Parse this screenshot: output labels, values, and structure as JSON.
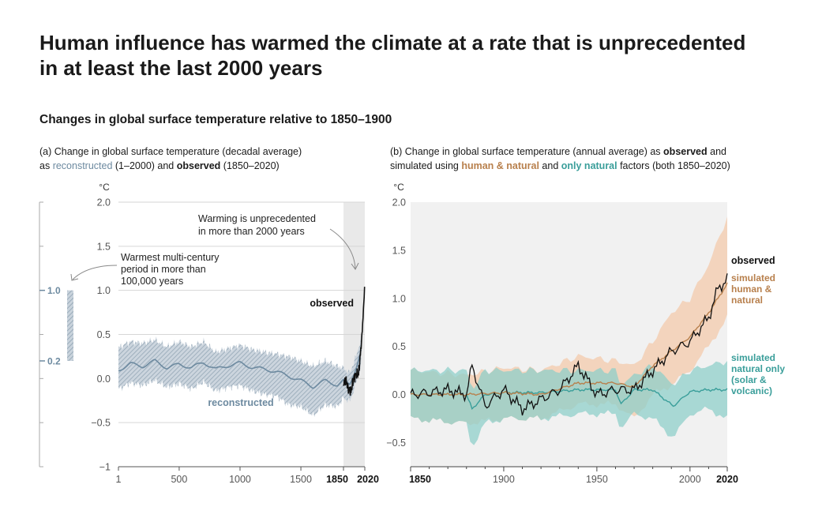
{
  "title_line1": "Human influence has warmed the climate at a rate that is unprecedented",
  "title_line2": "in at least the last 2000 years",
  "subtitle": "Changes in global surface temperature relative to 1850–1900",
  "panel_a": {
    "caption_line1": "(a) Change in global surface temperature (decadal average)",
    "caption_pre": "as ",
    "caption_recon": "reconstructed",
    "caption_mid": " (1–2000) and ",
    "caption_obs": "observed",
    "caption_post": " (1850–2020)",
    "unit": "°C",
    "y_ticks": [
      "2.0",
      "1.5",
      "1.0",
      "0.5",
      "0.0",
      "−0.5",
      "−1"
    ],
    "x_ticks": [
      "1",
      "500",
      "1000",
      "1500"
    ],
    "x_ticks_bold": [
      "1850",
      "2020"
    ],
    "annot_unprecedented_1": "Warming is unprecedented",
    "annot_unprecedented_2": "in more than 2000 years",
    "annot_warmest_1": "Warmest multi-century",
    "annot_warmest_2": "period in more than",
    "annot_warmest_3": "100,000 years",
    "label_observed": "observed",
    "label_reconstructed": "reconstructed",
    "side_bar_top": "1.0",
    "side_bar_bottom": "0.2"
  },
  "panel_b": {
    "caption_pre": "(b) Change in global surface temperature (annual average) as ",
    "caption_obs": "observed",
    "caption_post1": " and",
    "caption_l2_pre": "simulated using ",
    "caption_hum": "human & natural",
    "caption_and": " and ",
    "caption_nat": "only natural",
    "caption_l2_post": " factors (both 1850–2020)",
    "unit": "°C",
    "y_ticks": [
      "2.0",
      "1.5",
      "1.0",
      "0.5",
      "0.0",
      "−0.5"
    ],
    "x_ticks": [
      "1900",
      "1950",
      "2000"
    ],
    "x_ticks_bold": [
      "1850",
      "2020"
    ],
    "label_observed": "observed",
    "label_hum_1": "simulated",
    "label_hum_2": "human &",
    "label_hum_3": "natural",
    "label_nat_1": "simulated",
    "label_nat_2": "natural only",
    "label_nat_3": "(solar &",
    "label_nat_4": "volcanic)"
  },
  "colors": {
    "reconstructed": "#6d8aa0",
    "reconstructed_band": "#aebdc9",
    "observed": "#111111",
    "human_natural": "#b8804d",
    "human_natural_band": "#f3cfb4",
    "natural": "#3a9e9a",
    "natural_band": "#8fcfca",
    "plot_bg": "#f1f1f1"
  },
  "chart_data": [
    {
      "type": "line",
      "title": "(a) Change in global surface temperature (decadal average) as reconstructed (1–2000) and observed (1850–2020)",
      "ylabel": "°C",
      "xlim": [
        1,
        2020
      ],
      "ylim": [
        -1,
        2
      ],
      "grid": true,
      "series": [
        {
          "name": "reconstructed",
          "x": [
            1,
            100,
            200,
            300,
            400,
            500,
            600,
            700,
            800,
            900,
            1000,
            1100,
            1200,
            1300,
            1400,
            1500,
            1600,
            1700,
            1800,
            1850,
            1900,
            1950,
            2000
          ],
          "values": [
            0.08,
            0.15,
            0.12,
            0.18,
            0.1,
            0.14,
            0.1,
            0.16,
            0.08,
            0.12,
            0.15,
            0.1,
            0.08,
            0.05,
            0.0,
            -0.05,
            -0.12,
            -0.05,
            -0.1,
            -0.05,
            -0.1,
            0.1,
            0.35
          ],
          "band_low": [
            -0.12,
            -0.05,
            -0.08,
            -0.02,
            -0.1,
            -0.06,
            -0.12,
            -0.04,
            -0.14,
            -0.1,
            -0.08,
            -0.14,
            -0.18,
            -0.2,
            -0.3,
            -0.32,
            -0.42,
            -0.3,
            -0.32,
            -0.22,
            -0.26,
            -0.05,
            0.2
          ],
          "band_high": [
            0.35,
            0.42,
            0.4,
            0.44,
            0.36,
            0.42,
            0.36,
            0.42,
            0.3,
            0.34,
            0.38,
            0.33,
            0.3,
            0.28,
            0.25,
            0.2,
            0.14,
            0.2,
            0.14,
            0.12,
            0.06,
            0.25,
            0.5
          ]
        },
        {
          "name": "observed",
          "x": [
            1850,
            1870,
            1890,
            1910,
            1930,
            1950,
            1970,
            1990,
            2000,
            2010,
            2020
          ],
          "values": [
            -0.05,
            -0.02,
            -0.12,
            -0.15,
            0.0,
            0.05,
            0.05,
            0.35,
            0.55,
            0.8,
            1.08
          ]
        }
      ],
      "annotations": [
        "Warming is unprecedented in more than 2000 years",
        "Warmest multi-century period in more than 100,000 years"
      ],
      "side_bar_range": [
        0.2,
        1.0
      ]
    },
    {
      "type": "line",
      "title": "(b) Change in global surface temperature (annual average) as observed and simulated using human & natural and only natural factors (both 1850–2020)",
      "ylabel": "°C",
      "xlim": [
        1850,
        2020
      ],
      "ylim": [
        -0.75,
        2.0
      ],
      "grid": false,
      "series": [
        {
          "name": "observed",
          "x": [
            1850,
            1860,
            1870,
            1880,
            1883,
            1890,
            1900,
            1910,
            1920,
            1930,
            1940,
            1945,
            1950,
            1960,
            1970,
            1980,
            1990,
            2000,
            2010,
            2015,
            2020
          ],
          "values": [
            0.0,
            0.02,
            0.05,
            0.0,
            0.3,
            -0.12,
            0.05,
            -0.15,
            -0.05,
            0.05,
            0.3,
            0.15,
            0.0,
            0.05,
            0.05,
            0.25,
            0.45,
            0.55,
            0.8,
            1.1,
            1.2
          ]
        },
        {
          "name": "simulated human & natural",
          "x": [
            1850,
            1880,
            1900,
            1920,
            1940,
            1960,
            1970,
            1980,
            1990,
            2000,
            2010,
            2020
          ],
          "values": [
            0.0,
            0.0,
            0.02,
            0.0,
            0.12,
            0.12,
            0.08,
            0.3,
            0.45,
            0.6,
            0.85,
            1.15
          ],
          "band_low": [
            -0.25,
            -0.3,
            -0.25,
            -0.25,
            -0.1,
            -0.1,
            -0.25,
            0.0,
            0.1,
            0.25,
            0.5,
            0.8
          ],
          "band_high": [
            0.25,
            0.2,
            0.28,
            0.25,
            0.4,
            0.35,
            0.3,
            0.55,
            0.85,
            1.0,
            1.35,
            1.85
          ]
        },
        {
          "name": "simulated natural only (solar & volcanic)",
          "x": [
            1850,
            1880,
            1883,
            1890,
            1900,
            1920,
            1940,
            1960,
            1963,
            1970,
            1980,
            1991,
            2000,
            2010,
            2020
          ],
          "values": [
            0.0,
            0.0,
            -0.15,
            0.0,
            0.02,
            0.02,
            0.05,
            0.05,
            -0.1,
            0.05,
            0.05,
            -0.12,
            0.03,
            0.05,
            0.05
          ],
          "band_low": [
            -0.25,
            -0.3,
            -0.55,
            -0.3,
            -0.25,
            -0.25,
            -0.2,
            -0.2,
            -0.35,
            -0.2,
            -0.25,
            -0.45,
            -0.2,
            -0.15,
            -0.25
          ],
          "band_high": [
            0.25,
            0.25,
            0.05,
            0.25,
            0.25,
            0.25,
            0.25,
            0.25,
            0.1,
            0.2,
            0.3,
            0.1,
            0.25,
            0.3,
            0.35
          ]
        }
      ]
    }
  ]
}
